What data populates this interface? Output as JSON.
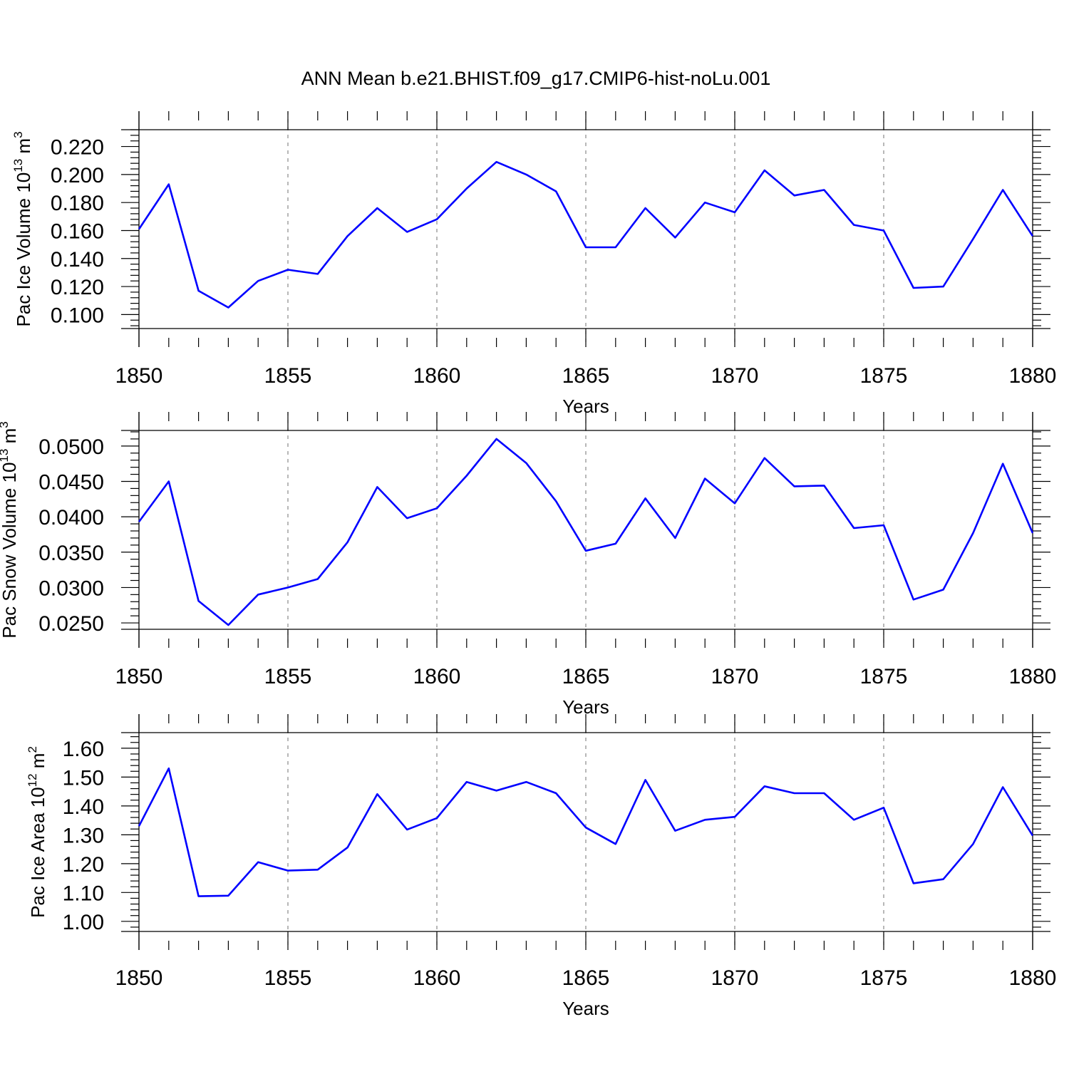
{
  "figure": {
    "title": "ANN Mean b.e21.BHIST.f09_g17.CMIP6-hist-noLu.001",
    "line_color": "#0000ff"
  },
  "chart_data": [
    {
      "type": "line",
      "title": "ANN Mean b.e21.BHIST.f09_g17.CMIP6-hist-noLu.001",
      "xlabel": "Years",
      "ylabel": {
        "base": "Pac Ice Volume 10",
        "exp": "13",
        "unit": " m",
        "unit_exp": "3"
      },
      "xlim": [
        1850,
        1880
      ],
      "ylim": [
        0.09,
        0.232
      ],
      "x_ticks": [
        1850,
        1855,
        1860,
        1865,
        1870,
        1875,
        1880
      ],
      "x_tick_labels": [
        "1850",
        "1855",
        "1860",
        "1865",
        "1870",
        "1875",
        "1880"
      ],
      "y_ticks": [
        0.1,
        0.12,
        0.14,
        0.16,
        0.18,
        0.2,
        0.22
      ],
      "y_tick_labels": [
        "0.100",
        "0.120",
        "0.140",
        "0.160",
        "0.180",
        "0.200",
        "0.220"
      ],
      "grid": "vertical dashed at major x ticks",
      "x": [
        1850,
        1851,
        1852,
        1853,
        1854,
        1855,
        1856,
        1857,
        1858,
        1859,
        1860,
        1861,
        1862,
        1863,
        1864,
        1865,
        1866,
        1867,
        1868,
        1869,
        1870,
        1871,
        1872,
        1873,
        1874,
        1875,
        1876,
        1877,
        1878,
        1879,
        1880
      ],
      "series": [
        {
          "values": [
            0.161,
            0.193,
            0.117,
            0.105,
            0.124,
            0.132,
            0.129,
            0.156,
            0.176,
            0.159,
            0.168,
            0.19,
            0.209,
            0.2,
            0.188,
            0.148,
            0.148,
            0.176,
            0.155,
            0.18,
            0.173,
            0.203,
            0.185,
            0.189,
            0.164,
            0.16,
            0.119,
            0.12,
            0.154,
            0.189,
            0.156
          ]
        }
      ]
    },
    {
      "type": "line",
      "xlabel": "Years",
      "ylabel": {
        "base": "Pac Snow Volume 10",
        "exp": "13",
        "unit": " m",
        "unit_exp": "3"
      },
      "xlim": [
        1850,
        1880
      ],
      "ylim": [
        0.0241,
        0.0522
      ],
      "x_ticks": [
        1850,
        1855,
        1860,
        1865,
        1870,
        1875,
        1880
      ],
      "x_tick_labels": [
        "1850",
        "1855",
        "1860",
        "1865",
        "1870",
        "1875",
        "1880"
      ],
      "y_ticks": [
        0.025,
        0.03,
        0.035,
        0.04,
        0.045,
        0.05
      ],
      "y_tick_labels": [
        "0.0250",
        "0.0300",
        "0.0350",
        "0.0400",
        "0.0450",
        "0.0500"
      ],
      "grid": "vertical dashed at major x ticks",
      "x": [
        1850,
        1851,
        1852,
        1853,
        1854,
        1855,
        1856,
        1857,
        1858,
        1859,
        1860,
        1861,
        1862,
        1863,
        1864,
        1865,
        1866,
        1867,
        1868,
        1869,
        1870,
        1871,
        1872,
        1873,
        1874,
        1875,
        1876,
        1877,
        1878,
        1879,
        1880
      ],
      "series": [
        {
          "values": [
            0.0393,
            0.045,
            0.0281,
            0.0247,
            0.029,
            0.03,
            0.0312,
            0.0364,
            0.0442,
            0.0398,
            0.0412,
            0.0458,
            0.051,
            0.0476,
            0.0422,
            0.0352,
            0.0362,
            0.0426,
            0.037,
            0.0454,
            0.0419,
            0.0483,
            0.0443,
            0.0444,
            0.0384,
            0.0388,
            0.0283,
            0.0297,
            0.0377,
            0.0475,
            0.0377
          ]
        }
      ]
    },
    {
      "type": "line",
      "xlabel": "Years",
      "ylabel": {
        "base": "Pac Ice Area 10",
        "exp": "12",
        "unit": " m",
        "unit_exp": "2"
      },
      "xlim": [
        1850,
        1880
      ],
      "ylim": [
        0.965,
        1.654
      ],
      "x_ticks": [
        1850,
        1855,
        1860,
        1865,
        1870,
        1875,
        1880
      ],
      "x_tick_labels": [
        "1850",
        "1855",
        "1860",
        "1865",
        "1870",
        "1875",
        "1880"
      ],
      "y_ticks": [
        1.0,
        1.1,
        1.2,
        1.3,
        1.4,
        1.5,
        1.6
      ],
      "y_tick_labels": [
        "1.00",
        "1.10",
        "1.20",
        "1.30",
        "1.40",
        "1.50",
        "1.60"
      ],
      "grid": "vertical dashed at major x ticks",
      "x": [
        1850,
        1851,
        1852,
        1853,
        1854,
        1855,
        1856,
        1857,
        1858,
        1859,
        1860,
        1861,
        1862,
        1863,
        1864,
        1865,
        1866,
        1867,
        1868,
        1869,
        1870,
        1871,
        1872,
        1873,
        1874,
        1875,
        1876,
        1877,
        1878,
        1879,
        1880
      ],
      "series": [
        {
          "values": [
            1.33,
            1.53,
            1.087,
            1.089,
            1.205,
            1.176,
            1.179,
            1.256,
            1.441,
            1.318,
            1.358,
            1.483,
            1.453,
            1.483,
            1.444,
            1.325,
            1.268,
            1.49,
            1.314,
            1.352,
            1.362,
            1.468,
            1.444,
            1.444,
            1.352,
            1.394,
            1.132,
            1.146,
            1.268,
            1.465,
            1.297
          ]
        }
      ]
    }
  ]
}
